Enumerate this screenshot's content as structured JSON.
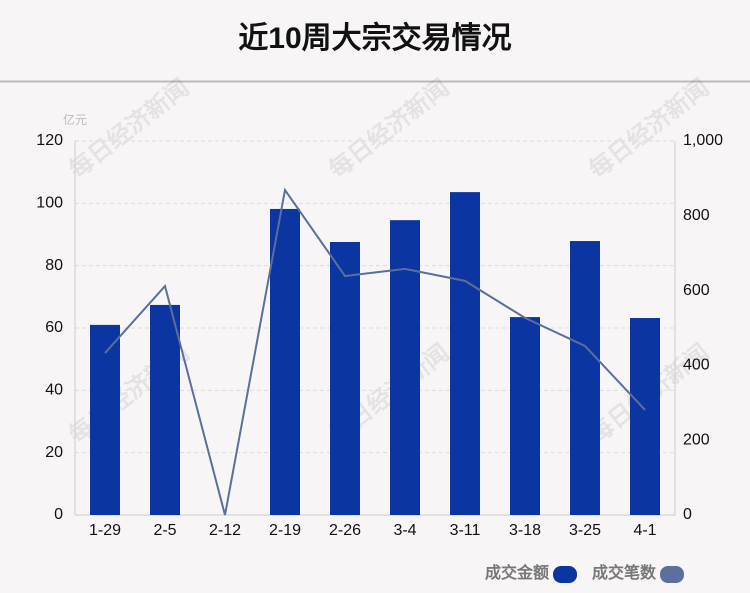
{
  "chart_data": {
    "type": "bar",
    "title": "近10周大宗交易情况",
    "y_unit": "亿元",
    "watermark": "每日经济新闻",
    "categories": [
      "1-29",
      "2-5",
      "2-12",
      "2-19",
      "2-26",
      "3-4",
      "3-11",
      "3-18",
      "3-25",
      "4-1"
    ],
    "series": [
      {
        "name": "成交金额",
        "type": "bar",
        "color": "#0b35a0",
        "values": [
          61.0,
          67.4,
          0,
          98.2,
          87.6,
          94.6,
          103.6,
          63.5,
          87.9,
          63.2
        ]
      },
      {
        "name": "成交笔数",
        "type": "line",
        "axis": "y2",
        "color": "#5a6f9c",
        "values": [
          433,
          612,
          0,
          869,
          639,
          658,
          626,
          527,
          452,
          281
        ]
      }
    ],
    "ylim": [
      0,
      120
    ],
    "yticks": [
      0,
      20,
      40,
      60,
      80,
      100,
      120
    ],
    "y2lim": [
      0,
      1000
    ],
    "y2ticks": [
      0,
      200,
      400,
      600,
      800,
      {
        "value": 1000,
        "label": "1,000"
      }
    ],
    "grid": true,
    "legend": "bottom-right"
  }
}
